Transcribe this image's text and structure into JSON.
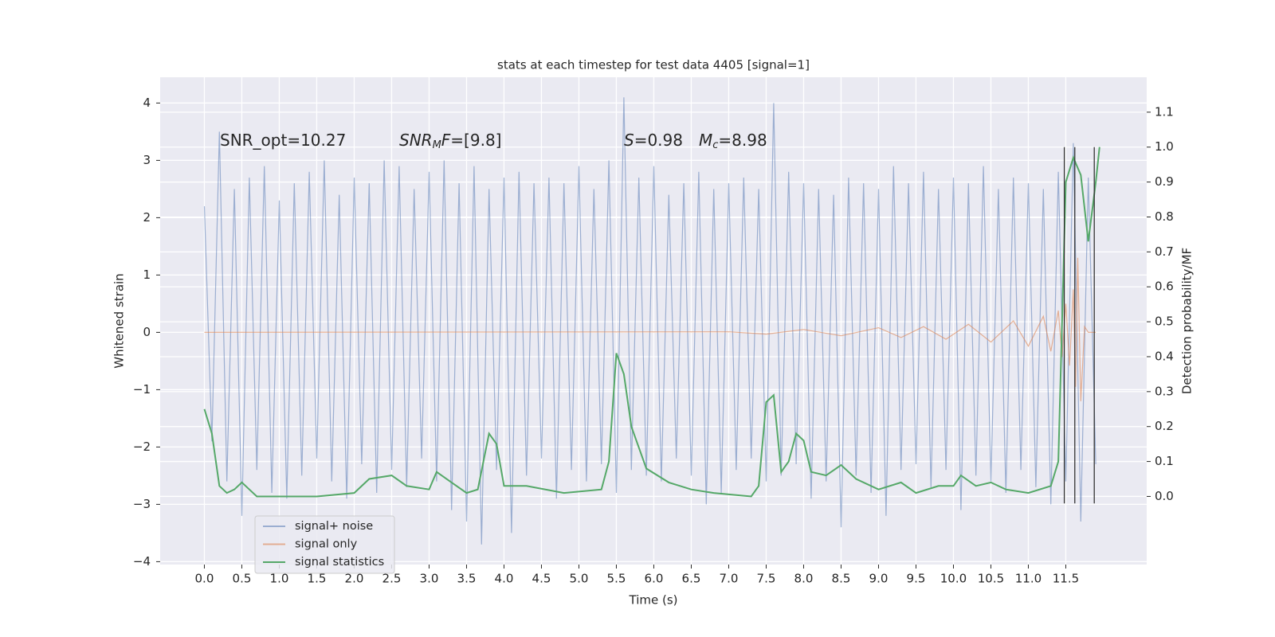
{
  "chart_data": {
    "type": "line",
    "title": "stats at each timestep for test data 4405 [signal=1]",
    "xlabel": "Time (s)",
    "ylabel": "Whitened strain",
    "y2label": "Detection probability/MF",
    "xlim": [
      -0.59,
      12.58
    ],
    "ylim": [
      -4.05,
      4.45
    ],
    "y2lim": [
      -0.195,
      1.2
    ],
    "xticks": [
      {
        "value": 0,
        "label": "0.0"
      },
      0.5,
      {
        "value": 1,
        "label": "1.0"
      },
      1.5,
      {
        "value": 2,
        "label": "2.0"
      },
      2.5,
      {
        "value": 3,
        "label": "3.0"
      },
      3.5,
      {
        "value": 4,
        "label": "4.0"
      },
      4.5,
      {
        "value": 5,
        "label": "5.0"
      },
      5.5,
      {
        "value": 6,
        "label": "6.0"
      },
      6.5,
      {
        "value": 7,
        "label": "7.0"
      },
      7.5,
      {
        "value": 8,
        "label": "8.0"
      },
      8.5,
      {
        "value": 9,
        "label": "9.0"
      },
      9.5,
      {
        "value": 10,
        "label": "10.0"
      },
      10.5,
      {
        "value": 11,
        "label": "11.0"
      },
      11.5
    ],
    "yticks": [
      {
        "value": -4,
        "label": "−4"
      },
      {
        "value": -3,
        "label": "−3"
      },
      {
        "value": -2,
        "label": "−2"
      },
      {
        "value": -1,
        "label": "−1"
      },
      0,
      1,
      2,
      3,
      4
    ],
    "y2ticks": [
      {
        "value": 0,
        "label": "0.0"
      },
      0.1,
      0.2,
      0.3,
      0.4,
      0.5,
      0.6,
      0.7,
      0.8,
      0.9,
      {
        "value": 1,
        "label": "1.0"
      },
      1.1
    ],
    "grid": true,
    "legend": "lower left",
    "series": [
      {
        "name": "signal+ noise",
        "color": "#4c72b0",
        "alpha": 0.5,
        "x": [
          0,
          0.1,
          0.2,
          0.3,
          0.4,
          0.5,
          0.6,
          0.7,
          0.8,
          0.9,
          1,
          1.1,
          1.2,
          1.3,
          1.4,
          1.5,
          1.6,
          1.7,
          1.8,
          1.9,
          2,
          2.1,
          2.2,
          2.3,
          2.4,
          2.5,
          2.6,
          2.7,
          2.8,
          2.9,
          3,
          3.1,
          3.2,
          3.3,
          3.4,
          3.5,
          3.6,
          3.7,
          3.8,
          3.9,
          4,
          4.1,
          4.2,
          4.3,
          4.4,
          4.5,
          4.6,
          4.7,
          4.8,
          4.9,
          5,
          5.1,
          5.2,
          5.3,
          5.4,
          5.5,
          5.6,
          5.7,
          5.8,
          5.9,
          6,
          6.1,
          6.2,
          6.3,
          6.4,
          6.5,
          6.6,
          6.7,
          6.8,
          6.9,
          7,
          7.1,
          7.2,
          7.3,
          7.4,
          7.5,
          7.6,
          7.7,
          7.8,
          7.9,
          8,
          8.1,
          8.2,
          8.3,
          8.4,
          8.5,
          8.6,
          8.7,
          8.8,
          8.9,
          9,
          9.1,
          9.2,
          9.3,
          9.4,
          9.5,
          9.6,
          9.7,
          9.8,
          9.9,
          10,
          10.1,
          10.2,
          10.3,
          10.4,
          10.5,
          10.6,
          10.7,
          10.8,
          10.9,
          11,
          11.1,
          11.2,
          11.3,
          11.4,
          11.5,
          11.6,
          11.7,
          11.8,
          11.9
        ],
        "values": [
          2.2,
          -1.9,
          3.5,
          -2.6,
          2.5,
          -3.2,
          2.7,
          -2.4,
          2.9,
          -2.8,
          2.3,
          -2.9,
          2.6,
          -2.5,
          2.8,
          -2.2,
          3.0,
          -2.6,
          2.4,
          -2.9,
          2.7,
          -2.3,
          2.6,
          -2.8,
          3.0,
          -2.4,
          2.9,
          -2.7,
          2.5,
          -2.2,
          2.8,
          -2.6,
          3.0,
          -3.1,
          2.6,
          -3.3,
          2.9,
          -3.7,
          2.5,
          -2.4,
          2.7,
          -3.5,
          2.8,
          -2.5,
          2.6,
          -2.2,
          2.7,
          -2.9,
          2.6,
          -2.4,
          2.9,
          -2.6,
          2.5,
          -2.3,
          3.0,
          -2.8,
          4.1,
          -2.4,
          2.7,
          -2.5,
          2.9,
          -2.6,
          2.4,
          -2.2,
          2.6,
          -2.5,
          2.8,
          -3.0,
          2.5,
          -2.8,
          2.6,
          -2.4,
          2.7,
          -2.2,
          2.5,
          -2.6,
          4.0,
          -2.5,
          2.8,
          -2.3,
          2.6,
          -2.9,
          2.5,
          -2.6,
          2.4,
          -3.4,
          2.7,
          -2.5,
          2.6,
          -2.8,
          2.5,
          -3.2,
          2.9,
          -2.4,
          2.6,
          -2.3,
          2.8,
          -2.7,
          2.5,
          -2.4,
          2.7,
          -3.1,
          2.6,
          -2.5,
          2.9,
          -2.6,
          2.5,
          -2.8,
          2.7,
          -2.4,
          2.6,
          -2.7,
          2.5,
          -3.0,
          2.8,
          -2.6,
          3.3,
          -3.3,
          2.7,
          -2.3
        ]
      },
      {
        "name": "signal only",
        "color": "#dd8452",
        "alpha": 0.6,
        "x": [
          0,
          7,
          7.5,
          8,
          8.5,
          9,
          9.3,
          9.6,
          9.9,
          10.2,
          10.5,
          10.8,
          11.0,
          11.2,
          11.3,
          11.4,
          11.45,
          11.5,
          11.55,
          11.6,
          11.63,
          11.66,
          11.7,
          11.75,
          11.8,
          11.9
        ],
        "values": [
          0,
          0.01,
          -0.03,
          0.05,
          -0.06,
          0.08,
          -0.09,
          0.1,
          -0.12,
          0.14,
          -0.17,
          0.2,
          -0.24,
          0.28,
          -0.33,
          0.38,
          -0.43,
          0.5,
          -0.58,
          0.75,
          -0.95,
          1.3,
          -1.2,
          0.1,
          0,
          0
        ]
      },
      {
        "name": "signal statistics",
        "color": "#55a868",
        "alpha": 1,
        "axis": "y2",
        "x": [
          0,
          0.1,
          0.2,
          0.3,
          0.4,
          0.5,
          0.6,
          0.7,
          1.0,
          1.5,
          2.0,
          2.2,
          2.5,
          2.7,
          3.0,
          3.1,
          3.3,
          3.5,
          3.65,
          3.8,
          3.9,
          4.0,
          4.3,
          4.8,
          5.3,
          5.4,
          5.5,
          5.6,
          5.7,
          5.9,
          6.2,
          6.5,
          6.8,
          7.3,
          7.4,
          7.5,
          7.6,
          7.7,
          7.8,
          7.9,
          8.0,
          8.1,
          8.3,
          8.5,
          8.7,
          9.0,
          9.3,
          9.5,
          9.8,
          10.0,
          10.1,
          10.3,
          10.5,
          10.7,
          11.0,
          11.3,
          11.4,
          11.5,
          11.6,
          11.7,
          11.8,
          11.9,
          11.95
        ],
        "values": [
          0.25,
          0.18,
          0.03,
          0.01,
          0.02,
          0.04,
          0.02,
          0.0,
          0.0,
          0.0,
          0.01,
          0.05,
          0.06,
          0.03,
          0.02,
          0.07,
          0.04,
          0.01,
          0.02,
          0.18,
          0.15,
          0.03,
          0.03,
          0.01,
          0.02,
          0.1,
          0.41,
          0.35,
          0.2,
          0.08,
          0.04,
          0.02,
          0.01,
          0.0,
          0.03,
          0.27,
          0.29,
          0.07,
          0.1,
          0.18,
          0.16,
          0.07,
          0.06,
          0.09,
          0.05,
          0.02,
          0.04,
          0.01,
          0.03,
          0.03,
          0.06,
          0.03,
          0.04,
          0.02,
          0.01,
          0.03,
          0.1,
          0.9,
          0.97,
          0.92,
          0.73,
          0.9,
          1.0
        ]
      }
    ],
    "vlines": {
      "x": [
        11.48,
        11.62,
        11.88
      ],
      "ymin": -0.02,
      "ymax": 1.0,
      "axis": "y2",
      "color": "#333333"
    },
    "annotations": [
      [
        {
          "text": "SNR_opt=10.27"
        }
      ],
      [
        {
          "text": "SNR",
          "style": "italic"
        },
        {
          "text": "M",
          "style": "sub"
        },
        {
          "text": "F",
          "style": "italic"
        },
        {
          "text": "=[9.8]"
        }
      ],
      [
        {
          "text": "S",
          "style": "italic"
        },
        {
          "text": "=0.98"
        }
      ],
      [
        {
          "text": "M",
          "style": "italic"
        },
        {
          "text": "c",
          "style": "sub"
        },
        {
          "text": "=8.98"
        }
      ]
    ]
  }
}
